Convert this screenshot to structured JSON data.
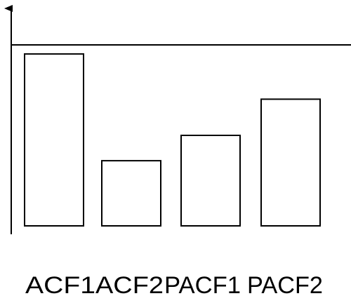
{
  "chart_data": {
    "type": "bar",
    "categories": [
      "ACF1",
      "ACF2",
      "PACF1",
      "PACF2"
    ],
    "values": [
      0.95,
      0.36,
      0.5,
      0.7
    ],
    "ylim": [
      0,
      1
    ],
    "title": "",
    "xlabel": "",
    "ylabel": "",
    "grid": false,
    "reference_line": 1,
    "bar_fill": "#ffffff",
    "bar_stroke": "#000000",
    "axis_color": "#000000"
  }
}
